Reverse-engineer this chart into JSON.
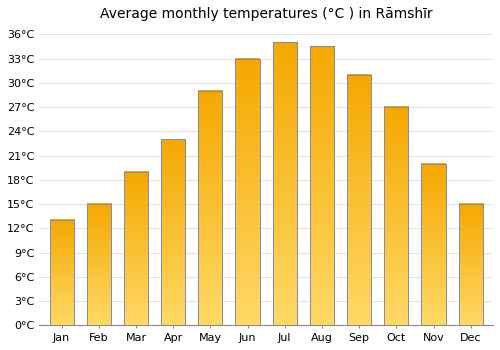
{
  "title": "Average monthly temperatures (°C ) in Rāmshīr",
  "months": [
    "Jan",
    "Feb",
    "Mar",
    "Apr",
    "May",
    "Jun",
    "Jul",
    "Aug",
    "Sep",
    "Oct",
    "Nov",
    "Dec"
  ],
  "values": [
    13,
    15,
    19,
    23,
    29,
    33,
    35,
    34.5,
    31,
    27,
    20,
    15
  ],
  "bar_color_bottom": "#F5A800",
  "bar_color_top": "#FFD966",
  "bar_edge_color": "#8888AA",
  "ylim": [
    0,
    37
  ],
  "yticks": [
    0,
    3,
    6,
    9,
    12,
    15,
    18,
    21,
    24,
    27,
    30,
    33,
    36
  ],
  "ytick_labels": [
    "0°C",
    "3°C",
    "6°C",
    "9°C",
    "12°C",
    "15°C",
    "18°C",
    "21°C",
    "24°C",
    "27°C",
    "30°C",
    "33°C",
    "36°C"
  ],
  "background_color": "#ffffff",
  "grid_color": "#e0e0e0",
  "title_fontsize": 10,
  "tick_fontsize": 8,
  "bar_width": 0.65
}
